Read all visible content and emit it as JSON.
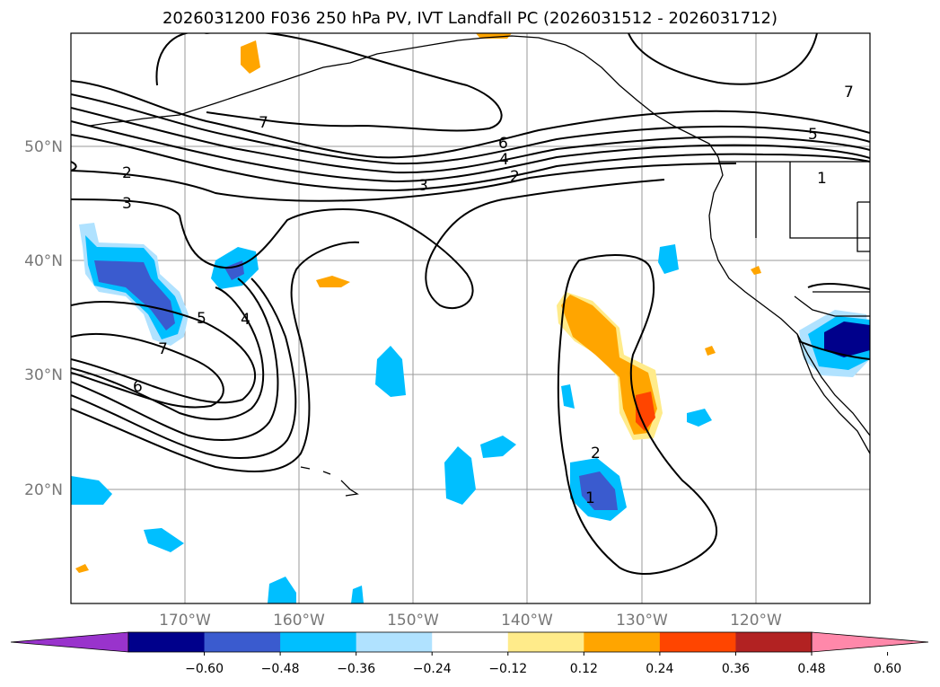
{
  "title": "2026031200 F036 250 hPa PV, IVT Landfall PC (2026031512 - 2026031712)",
  "map": {
    "lon_ticks": [
      "170°W",
      "160°W",
      "150°W",
      "140°W",
      "130°W",
      "120°W"
    ],
    "lat_ticks": [
      "50°N",
      "40°N",
      "30°N",
      "20°N"
    ],
    "contour_labels": [
      "7",
      "6",
      "4",
      "2",
      "2",
      "3",
      "3",
      "5",
      "4",
      "7",
      "6",
      "2",
      "1",
      "5",
      "7",
      "1"
    ]
  },
  "colorbar": {
    "ticks": [
      "−0.60",
      "−0.48",
      "−0.36",
      "−0.24",
      "−0.12",
      "0.12",
      "0.24",
      "0.36",
      "0.48",
      "0.60"
    ],
    "colors": [
      "#9933cc",
      "#00008b",
      "#3a5bcf",
      "#00bfff",
      "#b0e2ff",
      "#ffffff",
      "#ffeb8a",
      "#ffa500",
      "#ff4500",
      "#b22222",
      "#ff88aa"
    ]
  },
  "colors": {
    "neg_strong": "#2a2aa8",
    "neg_mid": "#3a5bcf",
    "neg_light": "#00bfff",
    "neg_pale": "#b0e2ff",
    "pos_pale": "#ffeb8a",
    "pos_mid": "#ffa500",
    "pos_strong": "#ff4500"
  }
}
